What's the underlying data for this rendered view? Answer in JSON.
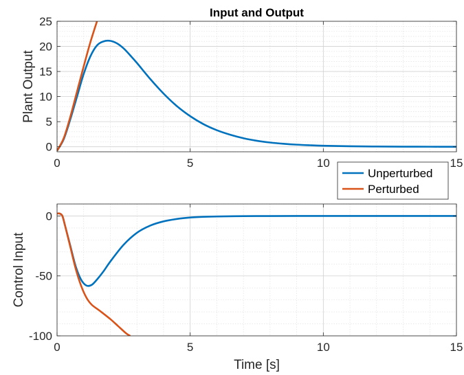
{
  "chart_data": [
    {
      "type": "line",
      "title": "Input and Output",
      "xlabel": "",
      "ylabel": "Plant Output",
      "xlim": [
        0,
        15
      ],
      "ylim": [
        -1,
        25
      ],
      "xticks": [
        0,
        5,
        10,
        15
      ],
      "yticks": [
        0,
        5,
        10,
        15,
        20,
        25
      ],
      "grid": true,
      "minor_grid": true,
      "series": [
        {
          "name": "Unperturbed",
          "color": "#0072BD",
          "x": [
            0,
            0.25,
            0.5,
            0.75,
            1,
            1.25,
            1.5,
            1.75,
            2,
            2.25,
            2.5,
            2.75,
            3,
            3.5,
            4,
            4.5,
            5,
            5.5,
            6,
            6.5,
            7,
            7.5,
            8,
            8.5,
            9,
            9.5,
            10,
            11,
            12,
            13,
            14,
            15
          ],
          "y": [
            -0.8,
            1.5,
            5.5,
            10,
            14.5,
            18,
            20.2,
            21,
            21.1,
            20.6,
            19.6,
            18.2,
            16.7,
            13.5,
            10.6,
            8.1,
            6.1,
            4.5,
            3.3,
            2.4,
            1.7,
            1.2,
            0.85,
            0.6,
            0.42,
            0.3,
            0.21,
            0.1,
            0.05,
            0.02,
            0.01,
            0
          ]
        },
        {
          "name": "Perturbed",
          "color": "#D95319",
          "x": [
            0,
            0.25,
            0.5,
            0.75,
            1,
            1.25,
            1.5
          ],
          "y": [
            -0.8,
            1.7,
            6,
            11,
            16,
            20.8,
            25
          ]
        }
      ],
      "legend": {
        "entries": [
          "Unperturbed",
          "Perturbed"
        ],
        "placement": "outside-right-between-plots"
      }
    },
    {
      "type": "line",
      "title": "",
      "xlabel": "Time [s]",
      "ylabel": "Control Input",
      "xlim": [
        0,
        15
      ],
      "ylim": [
        -100,
        10
      ],
      "xticks": [
        0,
        5,
        10,
        15
      ],
      "yticks": [
        -100,
        -50,
        0
      ],
      "grid": true,
      "minor_grid": true,
      "series": [
        {
          "name": "Unperturbed",
          "color": "#0072BD",
          "x": [
            0,
            0.1,
            0.2,
            0.3,
            0.5,
            0.7,
            0.9,
            1.1,
            1.3,
            1.5,
            1.75,
            2,
            2.5,
            3,
            3.5,
            4,
            4.5,
            5,
            5.5,
            6,
            7,
            8,
            9,
            10,
            12,
            15
          ],
          "y": [
            2,
            2,
            0,
            -8,
            -25,
            -42,
            -53,
            -58,
            -57.5,
            -53,
            -46,
            -38,
            -24,
            -14,
            -8,
            -4.5,
            -2.5,
            -1.3,
            -0.7,
            -0.4,
            -0.15,
            -0.05,
            0,
            0,
            0,
            0
          ]
        },
        {
          "name": "Perturbed",
          "color": "#D95319",
          "x": [
            0,
            0.1,
            0.2,
            0.3,
            0.5,
            0.7,
            0.9,
            1.1,
            1.3,
            1.6,
            2,
            2.3,
            2.6,
            2.75
          ],
          "y": [
            2,
            2,
            0,
            -8,
            -26,
            -44,
            -58,
            -68,
            -74,
            -79,
            -86,
            -92,
            -98,
            -100
          ]
        }
      ]
    }
  ]
}
